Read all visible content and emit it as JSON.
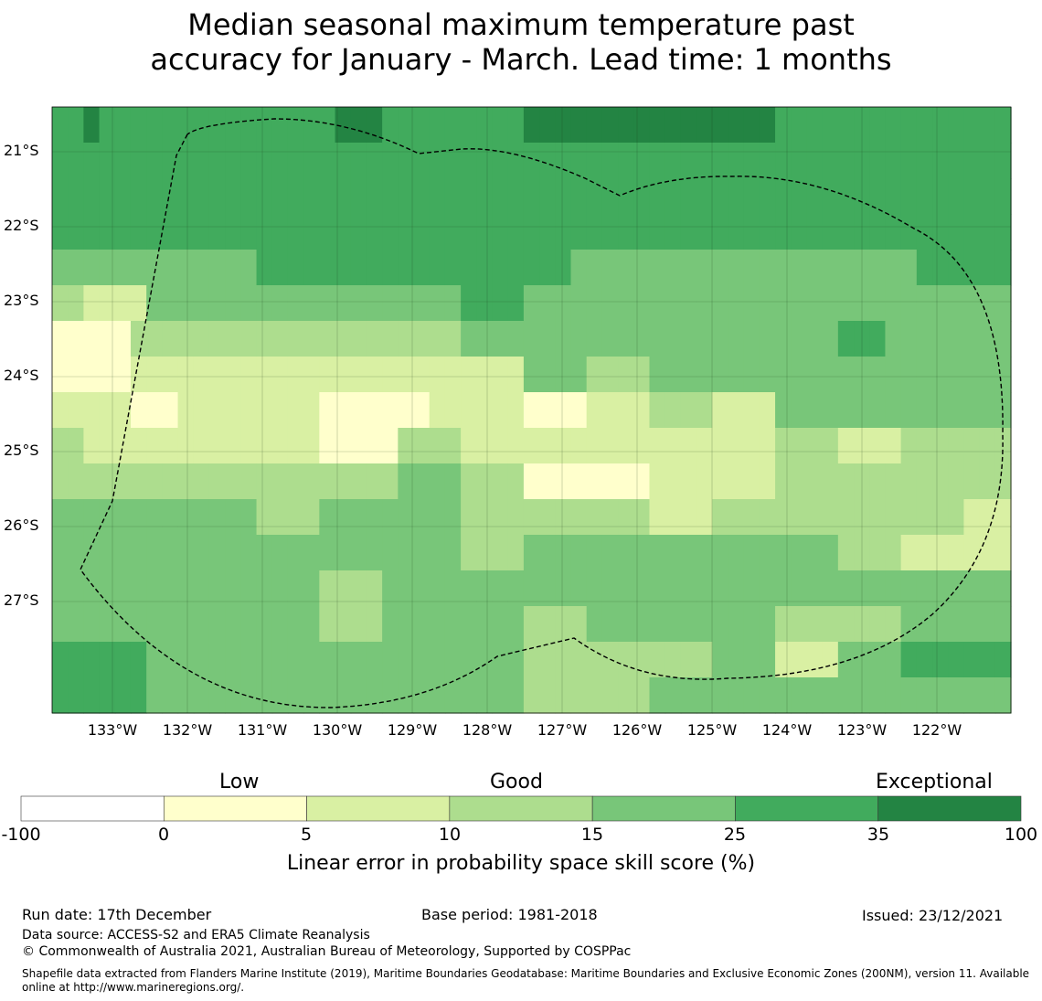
{
  "title": {
    "line1": "Median seasonal maximum temperature past",
    "line2": "accuracy for January - March. Lead time: 1 months"
  },
  "map": {
    "lat_labels": [
      "21°S",
      "22°S",
      "23°S",
      "24°S",
      "25°S",
      "26°S",
      "27°S"
    ],
    "lon_labels": [
      "133°W",
      "132°W",
      "131°W",
      "130°W",
      "129°W",
      "128°W",
      "127°W",
      "126°W",
      "125°W",
      "124°W",
      "123°W",
      "122°W"
    ],
    "grid_cells": [
      [
        4,
        4,
        5,
        4,
        4,
        4,
        4,
        4,
        4,
        4,
        4,
        4,
        4,
        4,
        4,
        4,
        4,
        4,
        5,
        5,
        5,
        4,
        4,
        4,
        4,
        4,
        4,
        4,
        4,
        4,
        5,
        5,
        5,
        5,
        5,
        5,
        5,
        5,
        5,
        5,
        5,
        5,
        5,
        5,
        5,
        5,
        4,
        4,
        4,
        4,
        4,
        4,
        4,
        4,
        4,
        4,
        4,
        4,
        4,
        4,
        4
      ],
      [
        4,
        4,
        4,
        4,
        4,
        4,
        4,
        4,
        4,
        4,
        4,
        4,
        4,
        4,
        4,
        4,
        4,
        4,
        4,
        4,
        4,
        4,
        4,
        4,
        4,
        4,
        4,
        4,
        4,
        4,
        4,
        4,
        4,
        4,
        4,
        4,
        4,
        4,
        4,
        4,
        4,
        4,
        4,
        4,
        4,
        4,
        4,
        4,
        4,
        4,
        4,
        4,
        4,
        4,
        4,
        4,
        4,
        4,
        4,
        4,
        4
      ],
      [
        4,
        4,
        4,
        4,
        4,
        4,
        4,
        4,
        4,
        4,
        4,
        4,
        4,
        4,
        4,
        4,
        4,
        4,
        4,
        4,
        4,
        4,
        4,
        4,
        4,
        4,
        4,
        4,
        4,
        4,
        4,
        4,
        4,
        4,
        4,
        4,
        4,
        4,
        4,
        4,
        4,
        4,
        4,
        4,
        4,
        4,
        4,
        4,
        4,
        4,
        4,
        4,
        4,
        4,
        4,
        4,
        4,
        4,
        4,
        4,
        4
      ],
      [
        4,
        4,
        4,
        4,
        4,
        4,
        4,
        4,
        4,
        4,
        4,
        4,
        4,
        4,
        4,
        4,
        4,
        4,
        4,
        4,
        4,
        4,
        4,
        4,
        4,
        4,
        4,
        4,
        4,
        4,
        4,
        4,
        4,
        4,
        4,
        4,
        4,
        4,
        4,
        4,
        4,
        4,
        4,
        4,
        4,
        4,
        4,
        4,
        4,
        4,
        4,
        4,
        4,
        4,
        4,
        4,
        4,
        4,
        4,
        4,
        4
      ],
      [
        3,
        3,
        3,
        3,
        3,
        3,
        3,
        3,
        3,
        3,
        3,
        3,
        3,
        4,
        4,
        4,
        4,
        4,
        4,
        4,
        4,
        4,
        4,
        4,
        4,
        4,
        4,
        4,
        4,
        4,
        4,
        4,
        4,
        3,
        3,
        3,
        3,
        3,
        3,
        3,
        3,
        3,
        3,
        3,
        3,
        3,
        3,
        3,
        3,
        3,
        3,
        3,
        3,
        3,
        3,
        4,
        4,
        4,
        4,
        4,
        4
      ],
      [
        2,
        2,
        1,
        1,
        1,
        1,
        3,
        3,
        3,
        3,
        3,
        3,
        3,
        3,
        3,
        3,
        3,
        3,
        3,
        3,
        3,
        3,
        3,
        3,
        3,
        3,
        4,
        4,
        4,
        4,
        3,
        3,
        3,
        3,
        3,
        3,
        3,
        3,
        3,
        3,
        3,
        3,
        3,
        3,
        3,
        3,
        3,
        3,
        3,
        3,
        3,
        3,
        3,
        3,
        3,
        3,
        3,
        3,
        3,
        3,
        3
      ],
      [
        0,
        0,
        0,
        0,
        0,
        2,
        2,
        2,
        2,
        2,
        2,
        2,
        2,
        2,
        2,
        2,
        2,
        2,
        2,
        2,
        2,
        2,
        2,
        2,
        2,
        2,
        3,
        3,
        3,
        3,
        3,
        3,
        3,
        3,
        3,
        3,
        3,
        3,
        3,
        3,
        3,
        3,
        3,
        3,
        3,
        3,
        3,
        3,
        3,
        3,
        4,
        4,
        4,
        3,
        3,
        3,
        3,
        3,
        3,
        3,
        3
      ],
      [
        0,
        0,
        0,
        0,
        0,
        1,
        1,
        1,
        1,
        1,
        1,
        1,
        1,
        1,
        1,
        1,
        1,
        1,
        1,
        1,
        1,
        1,
        1,
        1,
        1,
        1,
        1,
        1,
        1,
        1,
        3,
        3,
        3,
        3,
        2,
        2,
        2,
        2,
        3,
        3,
        3,
        3,
        3,
        3,
        3,
        3,
        3,
        3,
        3,
        3,
        3,
        3,
        3,
        3,
        3,
        3,
        3,
        3,
        3,
        3,
        3
      ],
      [
        1,
        1,
        1,
        1,
        1,
        0,
        0,
        0,
        1,
        1,
        1,
        1,
        1,
        1,
        1,
        1,
        1,
        0,
        0,
        0,
        0,
        0,
        0,
        0,
        1,
        1,
        1,
        1,
        1,
        1,
        0,
        0,
        0,
        0,
        1,
        1,
        1,
        1,
        2,
        2,
        2,
        2,
        1,
        1,
        1,
        1,
        3,
        3,
        3,
        3,
        3,
        3,
        3,
        3,
        3,
        3,
        3,
        3,
        3,
        3,
        3
      ],
      [
        2,
        2,
        1,
        1,
        1,
        1,
        1,
        1,
        1,
        1,
        1,
        1,
        1,
        1,
        1,
        1,
        1,
        0,
        0,
        0,
        0,
        0,
        2,
        2,
        2,
        2,
        1,
        1,
        1,
        1,
        1,
        1,
        1,
        1,
        1,
        1,
        1,
        1,
        1,
        1,
        1,
        1,
        1,
        1,
        1,
        1,
        2,
        2,
        2,
        2,
        1,
        1,
        1,
        1,
        2,
        2,
        2,
        2,
        2,
        2,
        2
      ],
      [
        2,
        2,
        2,
        2,
        2,
        2,
        2,
        2,
        2,
        2,
        2,
        2,
        2,
        2,
        2,
        2,
        2,
        2,
        2,
        2,
        2,
        2,
        3,
        3,
        3,
        3,
        2,
        2,
        2,
        2,
        0,
        0,
        0,
        0,
        0,
        0,
        0,
        0,
        1,
        1,
        1,
        1,
        1,
        1,
        1,
        1,
        2,
        2,
        2,
        2,
        2,
        2,
        2,
        2,
        2,
        2,
        2,
        2,
        2,
        2,
        2
      ],
      [
        3,
        3,
        3,
        3,
        3,
        3,
        3,
        3,
        3,
        3,
        3,
        3,
        3,
        2,
        2,
        2,
        2,
        3,
        3,
        3,
        3,
        3,
        3,
        3,
        3,
        3,
        2,
        2,
        2,
        2,
        2,
        2,
        2,
        2,
        2,
        2,
        2,
        2,
        1,
        1,
        1,
        1,
        2,
        2,
        2,
        2,
        2,
        2,
        2,
        2,
        2,
        2,
        2,
        2,
        2,
        2,
        2,
        2,
        1,
        1,
        1
      ],
      [
        3,
        3,
        3,
        3,
        3,
        3,
        3,
        3,
        3,
        3,
        3,
        3,
        3,
        3,
        3,
        3,
        3,
        3,
        3,
        3,
        3,
        3,
        3,
        3,
        3,
        3,
        2,
        2,
        2,
        2,
        3,
        3,
        3,
        3,
        3,
        3,
        3,
        3,
        3,
        3,
        3,
        3,
        3,
        3,
        3,
        3,
        3,
        3,
        3,
        3,
        2,
        2,
        2,
        2,
        1,
        1,
        1,
        1,
        1,
        1,
        1
      ],
      [
        3,
        3,
        3,
        3,
        3,
        3,
        3,
        3,
        3,
        3,
        3,
        3,
        3,
        3,
        3,
        3,
        3,
        2,
        2,
        2,
        2,
        3,
        3,
        3,
        3,
        3,
        3,
        3,
        3,
        3,
        3,
        3,
        3,
        3,
        3,
        3,
        3,
        3,
        3,
        3,
        3,
        3,
        3,
        3,
        3,
        3,
        3,
        3,
        3,
        3,
        3,
        3,
        3,
        3,
        3,
        3,
        3,
        3,
        3,
        3,
        3
      ],
      [
        3,
        3,
        3,
        3,
        3,
        3,
        3,
        3,
        3,
        3,
        3,
        3,
        3,
        3,
        3,
        3,
        3,
        2,
        2,
        2,
        2,
        3,
        3,
        3,
        3,
        3,
        3,
        3,
        3,
        3,
        2,
        2,
        2,
        2,
        3,
        3,
        3,
        3,
        3,
        3,
        3,
        3,
        3,
        3,
        3,
        3,
        2,
        2,
        2,
        2,
        2,
        2,
        2,
        2,
        3,
        3,
        3,
        3,
        3,
        3,
        3
      ],
      [
        4,
        4,
        4,
        4,
        4,
        4,
        3,
        3,
        3,
        3,
        3,
        3,
        3,
        3,
        3,
        3,
        3,
        3,
        3,
        3,
        3,
        3,
        3,
        3,
        3,
        3,
        3,
        3,
        3,
        3,
        2,
        2,
        2,
        2,
        2,
        2,
        2,
        2,
        2,
        2,
        2,
        2,
        3,
        3,
        3,
        3,
        1,
        1,
        1,
        1,
        3,
        3,
        3,
        3,
        4,
        4,
        4,
        4,
        4,
        4,
        4
      ],
      [
        4,
        4,
        4,
        4,
        4,
        4,
        3,
        3,
        3,
        3,
        3,
        3,
        3,
        3,
        3,
        3,
        3,
        3,
        3,
        3,
        3,
        3,
        3,
        3,
        3,
        3,
        3,
        3,
        3,
        3,
        2,
        2,
        2,
        2,
        2,
        2,
        2,
        2,
        3,
        3,
        3,
        3,
        3,
        3,
        3,
        3,
        3,
        3,
        3,
        3,
        3,
        3,
        3,
        3,
        3,
        3,
        3,
        3,
        3,
        3,
        3
      ]
    ],
    "feature_labels": [
      "Low",
      "Good",
      "Exceptional"
    ]
  },
  "colorbar": {
    "categories": [
      "Low",
      "Good",
      "Exceptional"
    ],
    "ticks": [
      "-100",
      "0",
      "5",
      "10",
      "15",
      "25",
      "35",
      "100"
    ],
    "colors": [
      "#ffffff",
      "#ffffcc",
      "#d9f0a3",
      "#addd8e",
      "#78c679",
      "#41ab5d",
      "#238443"
    ],
    "label": "Linear error in probability space skill score (%)"
  },
  "footer": {
    "run_date": "Run date: 17th December",
    "base_period": "Base period: 1981-2018",
    "issued": "Issued: 23/12/2021",
    "data_source": "Data source: ACCESS-S2 and ERA5 Climate Reanalysis",
    "copyright": "© Commonwealth of Australia 2021, Australian Bureau of Meteorology, Supported by COSPPac",
    "shapefile": "Shapefile data extracted from Flanders Marine Institute (2019), Maritime Boundaries Geodatabase: Maritime Boundaries and Exclusive Economic Zones (200NM), version 11. Available online at http://www.marineregions.org/."
  }
}
